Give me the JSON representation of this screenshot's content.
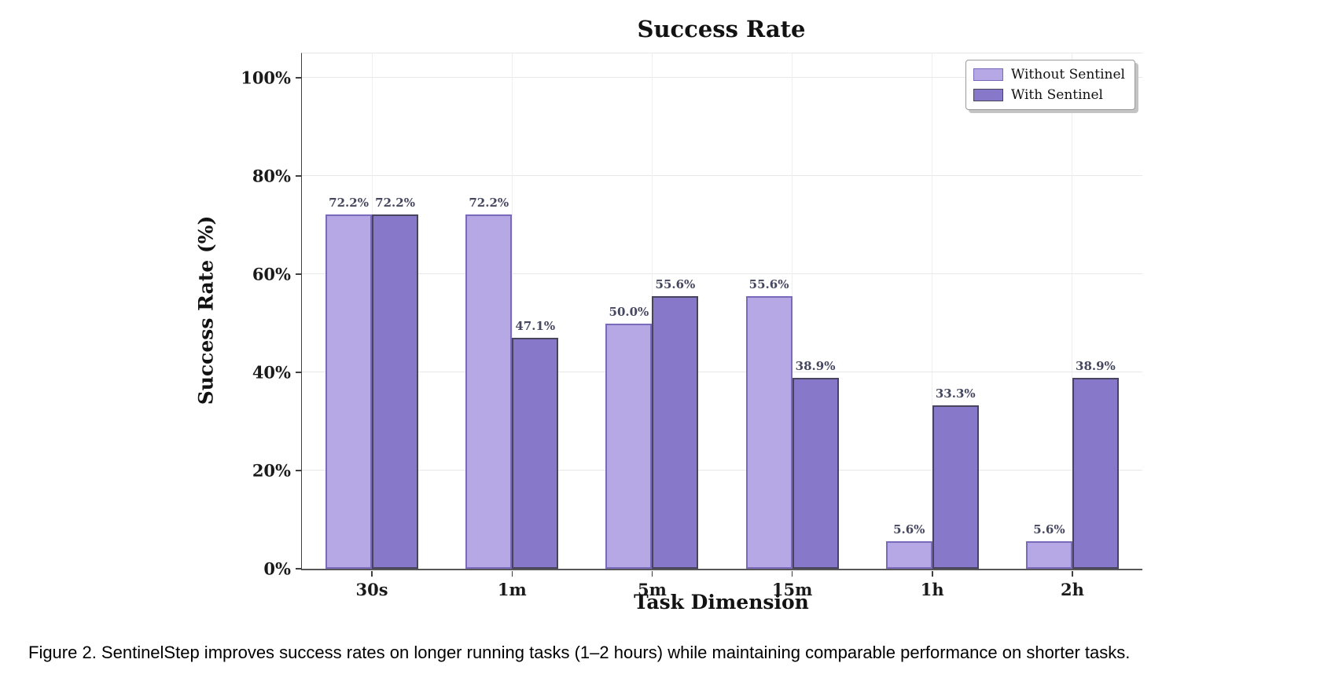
{
  "figure": {
    "caption": "Figure 2. SentinelStep improves success rates on longer running tasks (1–2 hours) while maintaining comparable performance on shorter tasks."
  },
  "chart_data": {
    "type": "bar",
    "title": "Success Rate",
    "xlabel": "Task Dimension",
    "ylabel": "Success Rate (%)",
    "categories": [
      "30s",
      "1m",
      "5m",
      "15m",
      "1h",
      "2h"
    ],
    "series": [
      {
        "name": "Without Sentinel",
        "values": [
          72.2,
          72.2,
          50.0,
          55.6,
          5.6,
          5.6
        ],
        "labels": [
          "72.2%",
          "72.2%",
          "50.0%",
          "55.6%",
          "5.6%",
          "5.6%"
        ],
        "fill_color": "#b6a8e4",
        "border_color": "#7b6ab9"
      },
      {
        "name": "With Sentinel",
        "values": [
          72.2,
          47.1,
          55.6,
          38.9,
          33.3,
          38.9
        ],
        "labels": [
          "72.2%",
          "47.1%",
          "55.6%",
          "38.9%",
          "33.3%",
          "38.9%"
        ],
        "fill_color": "#8878ca",
        "border_color": "#49445e"
      }
    ],
    "ylim": [
      0,
      105
    ],
    "yticks": {
      "values": [
        0,
        20,
        40,
        60,
        80,
        100
      ],
      "labels": [
        "0%",
        "20%",
        "40%",
        "60%",
        "80%",
        "100%"
      ]
    },
    "grid": true,
    "legend_position": "upper right",
    "value_label_color": "#45475f"
  }
}
